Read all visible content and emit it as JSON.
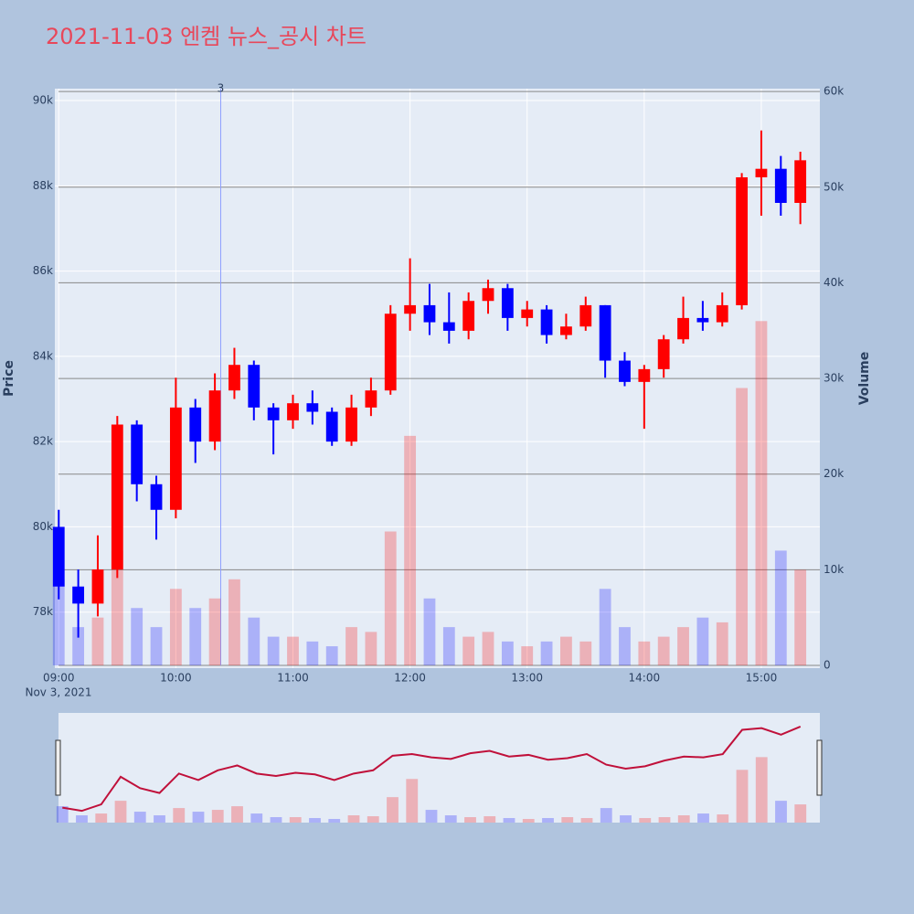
{
  "chart_data": {
    "type": "candlestick",
    "title": "2021-11-03 엔켐 뉴스_공시 차트",
    "y_label": "Price",
    "y2_label": "Volume",
    "x_date_label": "Nov 3, 2021",
    "x": [
      "09:00",
      "09:10",
      "09:20",
      "09:30",
      "09:40",
      "09:50",
      "10:00",
      "10:10",
      "10:20",
      "10:30",
      "10:40",
      "10:50",
      "11:00",
      "11:10",
      "11:20",
      "11:30",
      "11:40",
      "11:50",
      "12:00",
      "12:10",
      "12:20",
      "12:30",
      "12:40",
      "12:50",
      "13:00",
      "13:10",
      "13:20",
      "13:30",
      "13:40",
      "13:50",
      "14:00",
      "14:10",
      "14:20",
      "14:30",
      "14:40",
      "14:50",
      "15:00",
      "15:10",
      "15:20"
    ],
    "open": [
      80000,
      78600,
      78200,
      79000,
      82400,
      81000,
      80400,
      82800,
      82000,
      83200,
      83800,
      82800,
      82500,
      82900,
      82700,
      82000,
      82800,
      83200,
      85000,
      85200,
      84800,
      84600,
      85300,
      85600,
      84900,
      85100,
      84500,
      84700,
      85200,
      83900,
      83400,
      83700,
      84400,
      84900,
      84800,
      85200,
      88200,
      88400,
      87600
    ],
    "high": [
      80400,
      79000,
      79800,
      82600,
      82500,
      81200,
      83500,
      83000,
      83600,
      84200,
      83900,
      82900,
      83100,
      83200,
      82800,
      83100,
      83500,
      85200,
      86300,
      85700,
      85500,
      85500,
      85800,
      85700,
      85300,
      85200,
      85000,
      85400,
      85200,
      84100,
      83800,
      84500,
      85400,
      85300,
      85500,
      88300,
      89300,
      88700,
      88800
    ],
    "low": [
      78300,
      77400,
      77900,
      78800,
      80600,
      79700,
      80200,
      81500,
      81800,
      83000,
      82500,
      81700,
      82300,
      82400,
      81900,
      81900,
      82600,
      83100,
      84600,
      84500,
      84300,
      84400,
      85000,
      84600,
      84700,
      84300,
      84400,
      84600,
      83500,
      83300,
      82300,
      83500,
      84300,
      84600,
      84700,
      85100,
      87300,
      87300,
      87100
    ],
    "close": [
      78600,
      78200,
      79000,
      82400,
      81000,
      80400,
      82800,
      82000,
      83200,
      83800,
      82800,
      82500,
      82900,
      82700,
      82000,
      82800,
      83200,
      85000,
      85200,
      84800,
      84600,
      85300,
      85600,
      84900,
      85100,
      84500,
      84700,
      85200,
      83900,
      83400,
      83700,
      84400,
      84900,
      84800,
      85200,
      88200,
      88400,
      87600,
      88600
    ],
    "volume": [
      9000,
      4000,
      5000,
      12000,
      6000,
      4000,
      8000,
      6000,
      7000,
      9000,
      5000,
      3000,
      3000,
      2500,
      2000,
      4000,
      3500,
      14000,
      24000,
      7000,
      4000,
      3000,
      3500,
      2500,
      2000,
      2500,
      3000,
      2500,
      8000,
      4000,
      2500,
      3000,
      4000,
      5000,
      4500,
      29000,
      36000,
      12000,
      10000
    ],
    "up_color": "#ff0000",
    "down_color": "#0000ff",
    "xlim": [
      "08:58",
      "15:30"
    ],
    "xticks": [
      "09:00",
      "10:00",
      "11:00",
      "12:00",
      "13:00",
      "14:00",
      "15:00"
    ],
    "ylim": [
      76750,
      90280
    ],
    "yticks": [
      {
        "value": 78000,
        "label": "78k"
      },
      {
        "value": 80000,
        "label": "80k"
      },
      {
        "value": 82000,
        "label": "82k"
      },
      {
        "value": 84000,
        "label": "84k"
      },
      {
        "value": 86000,
        "label": "86k"
      },
      {
        "value": 88000,
        "label": "88k"
      },
      {
        "value": 90000,
        "label": "90k"
      }
    ],
    "y2lim": [
      0,
      60300
    ],
    "y2ticks": [
      0,
      {
        "value": 10000,
        "label": "10k"
      },
      {
        "value": 20000,
        "label": "20k"
      },
      {
        "value": 30000,
        "label": "30k"
      },
      {
        "value": 40000,
        "label": "40k"
      },
      {
        "value": 50000,
        "label": "50k"
      },
      {
        "value": 60000,
        "label": "60k"
      }
    ],
    "annotation": {
      "x": "10:23",
      "text": "3"
    },
    "grid": true
  }
}
